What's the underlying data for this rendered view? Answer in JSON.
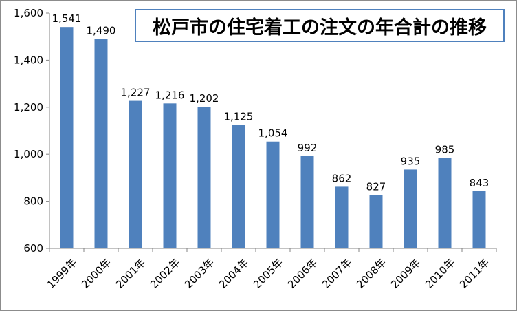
{
  "chart_data": {
    "type": "bar",
    "title": "松戸市の住宅着工の注文の年合計の推移",
    "categories": [
      "1999年",
      "2000年",
      "2001年",
      "2002年",
      "2003年",
      "2004年",
      "2005年",
      "2006年",
      "2007年",
      "2008年",
      "2009年",
      "2010年",
      "2011年"
    ],
    "values": [
      1541,
      1490,
      1227,
      1216,
      1202,
      1125,
      1054,
      992,
      862,
      827,
      935,
      985,
      843
    ],
    "data_labels": [
      "1,541",
      "1,490",
      "1,227",
      "1,216",
      "1,202",
      "1,125",
      "1,054",
      "992",
      "862",
      "827",
      "935",
      "985",
      "843"
    ],
    "ylim": [
      600,
      1600
    ],
    "yticks": [
      600,
      800,
      1000,
      1200,
      1400,
      1600
    ],
    "ytick_labels": [
      "600",
      "800",
      "1,000",
      "1,200",
      "1,400",
      "1,600"
    ],
    "xlabel": "",
    "ylabel": "",
    "grid": false,
    "legend": false,
    "bar_color": "#4f81bd",
    "title_border_color": "#4f81bd"
  }
}
